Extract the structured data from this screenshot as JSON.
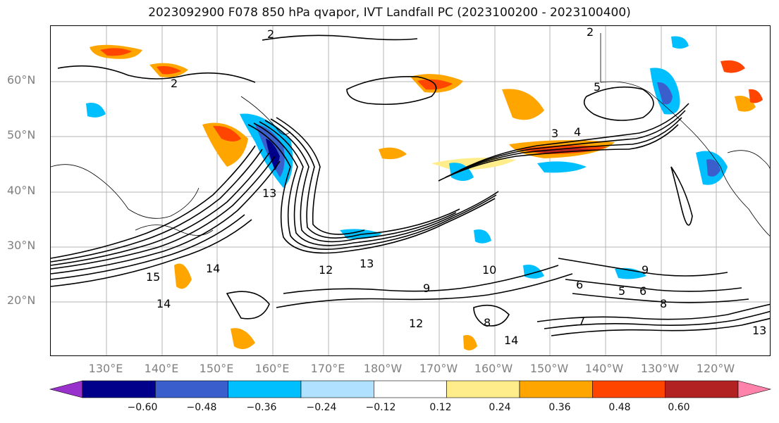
{
  "title": "2023092900 F078 850 hPa qvapor, IVT Landfall PC (2023100200 - 2023100400)",
  "map": {
    "lat_labels": [
      "60°N",
      "50°N",
      "40°N",
      "30°N",
      "20°N"
    ],
    "lon_labels": [
      "130°E",
      "140°E",
      "150°E",
      "160°E",
      "170°E",
      "180°W",
      "170°W",
      "160°W",
      "150°W",
      "140°W",
      "130°W",
      "120°W"
    ],
    "contour_labels": [
      "2",
      "2",
      "2",
      "3",
      "4",
      "5",
      "13",
      "12",
      "13",
      "15",
      "14",
      "14",
      "10",
      "9",
      "8",
      "6",
      "7",
      "14",
      "13",
      "12",
      "9",
      "8",
      "5",
      "6"
    ]
  },
  "colorbar": {
    "ticks": [
      "−0.60",
      "−0.48",
      "−0.36",
      "−0.24",
      "−0.12",
      "0.12",
      "0.24",
      "0.36",
      "0.48",
      "0.60"
    ],
    "colors": [
      "#9932cc",
      "#00008b",
      "#3a5fcd",
      "#00bfff",
      "#b0e2ff",
      "#ffffff",
      "#ffec8b",
      "#ffa500",
      "#ff4500",
      "#b22222",
      "#ff82ab"
    ]
  }
}
